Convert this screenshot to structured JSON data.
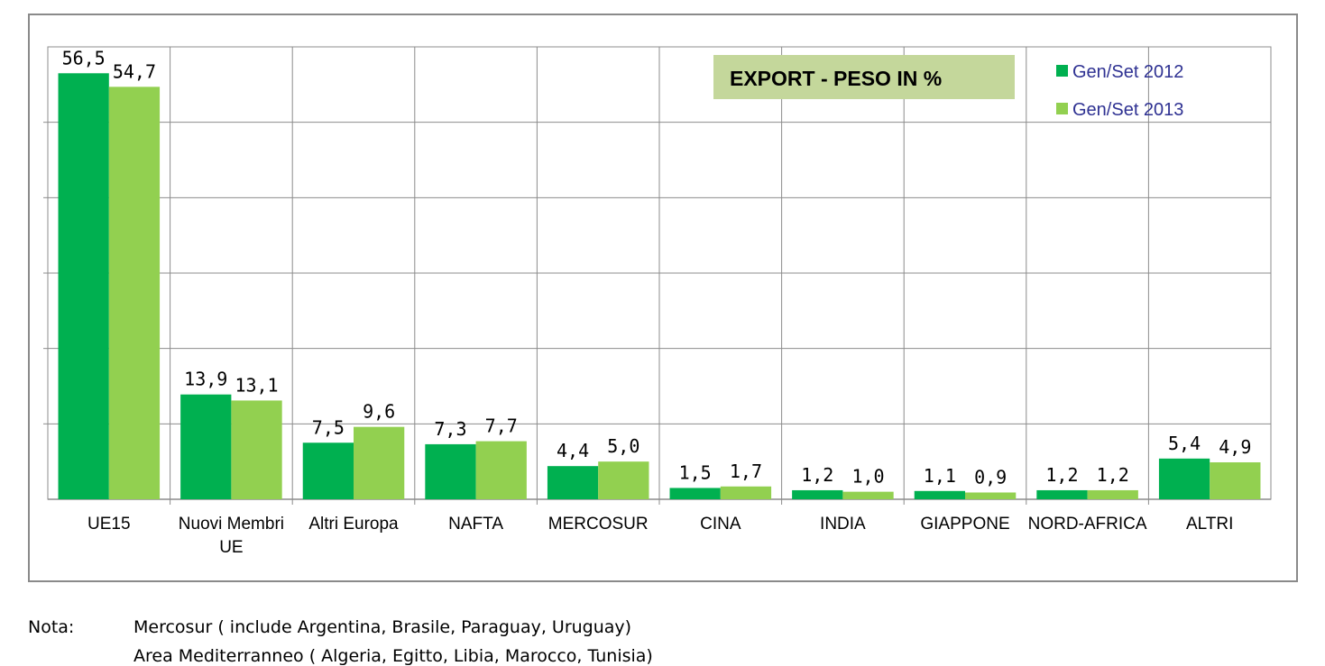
{
  "chart_data": {
    "type": "bar",
    "title": "EXPORT - PESO IN %",
    "categories": [
      [
        "UE15"
      ],
      [
        "Nuovi Membri",
        "UE"
      ],
      [
        "Altri Europa"
      ],
      [
        "NAFTA"
      ],
      [
        "MERCOSUR"
      ],
      [
        "CINA"
      ],
      [
        "INDIA"
      ],
      [
        "GIAPPONE"
      ],
      [
        "NORD-AFRICA"
      ],
      [
        "ALTRI"
      ]
    ],
    "series": [
      {
        "name": "Gen/Set 2012",
        "color": "#00b050",
        "values": [
          56.5,
          13.9,
          7.5,
          7.3,
          4.4,
          1.5,
          1.2,
          1.1,
          1.2,
          5.4
        ],
        "labels": [
          "56,5",
          "13,9",
          "7,5",
          "7,3",
          "4,4",
          "1,5",
          "1,2",
          "1,1",
          "1,2",
          "5,4"
        ]
      },
      {
        "name": "Gen/Set 2013",
        "color": "#92d050",
        "values": [
          54.7,
          13.1,
          9.6,
          7.7,
          5.0,
          1.7,
          1.0,
          0.9,
          1.2,
          4.9
        ],
        "labels": [
          "54,7",
          "13,1",
          "9,6",
          "7,7",
          "5,0",
          "1,7",
          "1,0",
          "0,9",
          "1,2",
          "4,9"
        ]
      }
    ],
    "ylim": [
      0,
      60
    ],
    "grid": true,
    "legend": "top-right",
    "title_box_color": "#c4d79b"
  },
  "note": {
    "label": "Nota:",
    "line1": "Mercosur ( include Argentina, Brasile, Paraguay, Uruguay)",
    "line2": "Area Mediterranneo ( Algeria, Egitto, Libia, Marocco, Tunisia)"
  }
}
